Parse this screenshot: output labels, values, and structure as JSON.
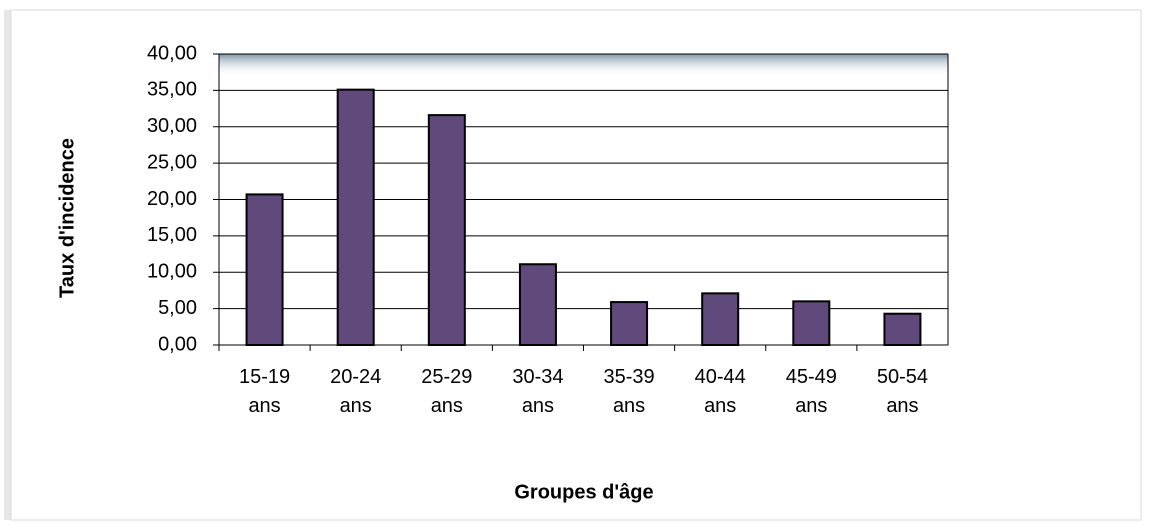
{
  "chart_data": {
    "type": "bar",
    "categories": [
      "15-19 ans",
      "20-24 ans",
      "25-29 ans",
      "30-34 ans",
      "35-39 ans",
      "40-44 ans",
      "45-49 ans",
      "50-54 ans"
    ],
    "values": [
      20.7,
      35.1,
      31.6,
      11.1,
      5.9,
      7.1,
      6.0,
      4.3
    ],
    "color": "#604a7b",
    "ylim": [
      0,
      40
    ],
    "yticks": [
      {
        "value": 0,
        "label": "0,00"
      },
      {
        "value": 5,
        "label": "5,00"
      },
      {
        "value": 10,
        "label": "10,00"
      },
      {
        "value": 15,
        "label": "15,00"
      },
      {
        "value": 20,
        "label": "20,00"
      },
      {
        "value": 25,
        "label": "25,00"
      },
      {
        "value": 30,
        "label": "30,00"
      },
      {
        "value": 35,
        "label": "35,00"
      },
      {
        "value": 40,
        "label": "40,00"
      }
    ],
    "grid": true,
    "xlabel": "Groupes d'âge",
    "ylabel": "Taux d'incidence"
  }
}
